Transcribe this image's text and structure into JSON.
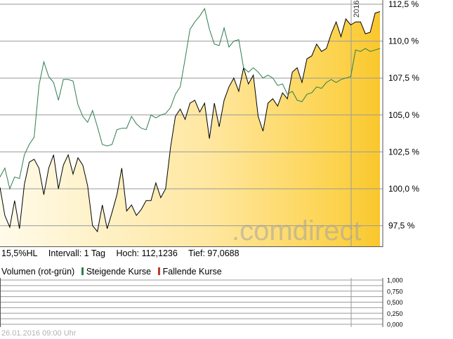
{
  "chart_data": [
    {
      "type": "line",
      "y_unit": "%",
      "y_ticks": [
        "97,5 %",
        "100,0 %",
        "102,5 %",
        "105,0 %",
        "107,5 %",
        "110,0 %",
        "112,5 %"
      ],
      "ylim": [
        96.5,
        112.5
      ],
      "year_marker": "2016",
      "watermark": ".comdirect",
      "series": [
        {
          "color": "#000000",
          "fill": "#fcd44d",
          "values": [
            100.1,
            98.2,
            97.4,
            99.2,
            97.3,
            100.3,
            101.8,
            102.0,
            101.4,
            99.6,
            101.4,
            102.3,
            100.0,
            101.6,
            102.3,
            101.0,
            102.1,
            101.6,
            100.2,
            97.5,
            97.1,
            98.9,
            97.3,
            98.4,
            99.6,
            101.4,
            98.5,
            98.9,
            98.2,
            98.6,
            99.2,
            99.2,
            100.4,
            99.4,
            100.0,
            102.8,
            104.9,
            105.4,
            104.7,
            105.8,
            106.0,
            105.2,
            105.8,
            103.4,
            105.8,
            104.2,
            106.0,
            106.9,
            107.5,
            106.6,
            108.2,
            107.1,
            107.7,
            104.9,
            103.9,
            105.8,
            106.1,
            105.6,
            106.5,
            106.1,
            107.9,
            108.2,
            107.2,
            108.8,
            109.0,
            109.8,
            109.3,
            109.5,
            110.5,
            111.3,
            110.3,
            111.5,
            111.1,
            111.3,
            111.3,
            110.5,
            110.6,
            111.9,
            112.0
          ]
        },
        {
          "color": "#2e7d4f",
          "values": [
            100.8,
            101.4,
            100.0,
            100.8,
            100.7,
            102.3,
            103.0,
            103.5,
            107.0,
            108.6,
            107.6,
            107.2,
            106.0,
            107.4,
            107.4,
            107.3,
            105.7,
            104.9,
            104.5,
            105.3,
            104.2,
            103.0,
            102.9,
            103.0,
            104.0,
            104.1,
            104.1,
            104.9,
            104.4,
            104.1,
            104.0,
            105.0,
            104.8,
            105.0,
            105.1,
            105.5,
            106.4,
            106.9,
            108.8,
            110.8,
            111.3,
            111.7,
            112.2,
            110.8,
            109.8,
            109.7,
            110.9,
            109.6,
            110.0,
            110.1,
            108.2,
            107.9,
            108.2,
            107.9,
            107.5,
            107.7,
            107.5,
            107.0,
            107.1,
            106.4,
            106.6,
            106.0,
            105.9,
            106.4,
            106.5,
            106.9,
            106.8,
            107.2,
            107.4,
            107.2,
            107.4,
            107.5,
            107.6,
            109.4,
            109.3,
            109.5,
            109.3,
            109.4,
            109.5
          ]
        }
      ]
    },
    {
      "type": "bar",
      "title": "Volumen (rot-grün)",
      "y_ticks": [
        "1,000",
        "0,750",
        "0,500",
        "0,250",
        "0,000"
      ],
      "ylim": [
        0,
        1
      ],
      "series": [
        {
          "name": "Steigende Kurse",
          "color": "#2e7d4f",
          "values": []
        },
        {
          "name": "Fallende Kurse",
          "color": "#c0392b",
          "values": []
        }
      ]
    }
  ],
  "info": {
    "range": "15,5%HL",
    "interval": "Intervall: 1 Tag",
    "high": "Hoch: 112,1236",
    "low": "Tief: 97,0688"
  },
  "timestamp": "26.01.2016 09:00 Uhr"
}
